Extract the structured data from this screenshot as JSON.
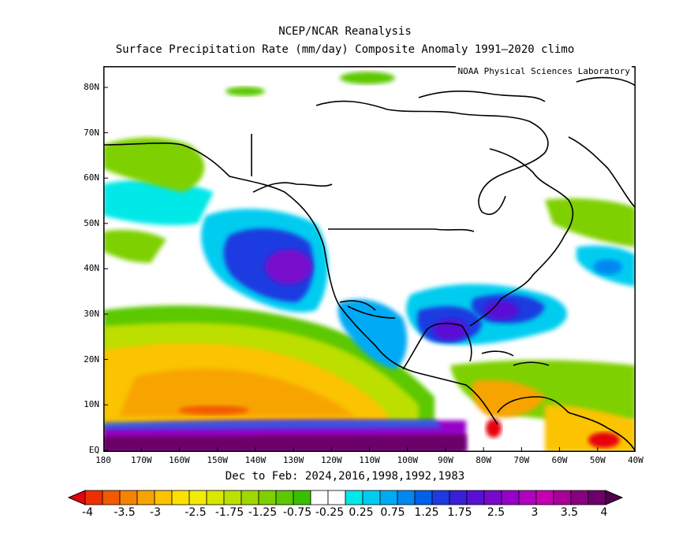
{
  "title": {
    "line1": "NCEP/NCAR Reanalysis",
    "line2": "Surface Precipitation Rate (mm/day) Composite Anomaly 1991–2020 climo"
  },
  "credit": "NOAA Physical Sciences Laboratory",
  "subcaption": "Dec to Feb: 2024,2016,1998,1992,1983",
  "axes": {
    "lat_ticks": [
      "80N",
      "70N",
      "60N",
      "50N",
      "40N",
      "30N",
      "20N",
      "10N",
      "EQ"
    ],
    "lon_ticks": [
      "180",
      "170W",
      "160W",
      "150W",
      "140W",
      "130W",
      "120W",
      "110W",
      "100W",
      "90W",
      "80W",
      "70W",
      "60W",
      "50W",
      "40W"
    ]
  },
  "colorbar": {
    "labels": [
      "-4",
      "-3.5",
      "-3",
      "-2.5",
      "-1.75",
      "-1.25",
      "-0.75",
      "-0.25",
      "0.25",
      "0.75",
      "1.25",
      "1.75",
      "2.5",
      "3",
      "3.5",
      "4"
    ],
    "colors": [
      "#e8000b",
      "#ef2f00",
      "#f25a00",
      "#f58200",
      "#f8a400",
      "#fbc300",
      "#fde000",
      "#f2ec00",
      "#d8e600",
      "#bcdf00",
      "#9fd800",
      "#7ed000",
      "#5cc800",
      "#38c000",
      "#ffffff",
      "#ffffff",
      "#00e8e8",
      "#00ccf0",
      "#00aaf4",
      "#0088f0",
      "#0060ea",
      "#1e3ae0",
      "#3820d8",
      "#5a10d4",
      "#7808cc",
      "#9600c8",
      "#b000c0",
      "#c400b0",
      "#a80098",
      "#880080",
      "#6c0068",
      "#500050"
    ]
  }
}
